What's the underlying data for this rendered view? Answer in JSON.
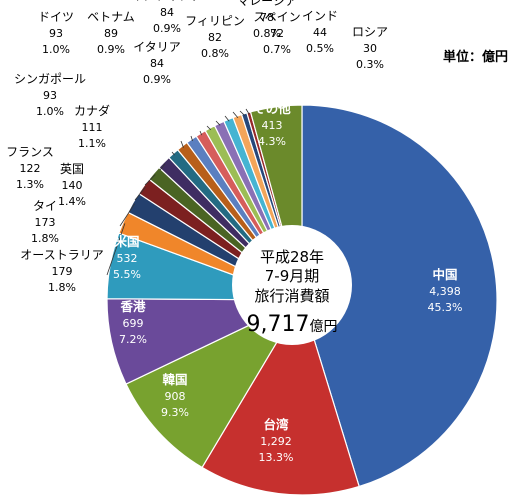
{
  "unit_label": "単位：億円",
  "center": {
    "line1": "平成28年",
    "line2": "7-9月期",
    "line3": "旅行消費額",
    "total_value": "9,717",
    "total_unit": "億円"
  },
  "chart_data": {
    "type": "pie",
    "title": "",
    "start_angle_deg": 0,
    "total": 9717,
    "slices": [
      {
        "label": "中国",
        "value": 4398,
        "value_text": "4,398",
        "pct": "45.3%",
        "color": "#3561a9"
      },
      {
        "label": "台湾",
        "value": 1292,
        "value_text": "1,292",
        "pct": "13.3%",
        "color": "#c6302e"
      },
      {
        "label": "韓国",
        "value": 908,
        "value_text": "908",
        "pct": "9.3%",
        "color": "#78a22f"
      },
      {
        "label": "香港",
        "value": 699,
        "value_text": "699",
        "pct": "7.2%",
        "color": "#6a4a9a"
      },
      {
        "label": "米国",
        "value": 532,
        "value_text": "532",
        "pct": "5.5%",
        "color": "#2f9bbd"
      },
      {
        "label": "オーストラリア",
        "value": 179,
        "value_text": "179",
        "pct": "1.8%",
        "color": "#f0862a"
      },
      {
        "label": "タイ",
        "value": 173,
        "value_text": "173",
        "pct": "1.8%",
        "color": "#23406e"
      },
      {
        "label": "英国",
        "value": 140,
        "value_text": "140",
        "pct": "1.4%",
        "color": "#7c2020"
      },
      {
        "label": "フランス",
        "value": 122,
        "value_text": "122",
        "pct": "1.3%",
        "color": "#4a6423"
      },
      {
        "label": "カナダ",
        "value": 111,
        "value_text": "111",
        "pct": "1.1%",
        "color": "#3f2d62"
      },
      {
        "label": "シンガポール",
        "value": 93,
        "value_text": "93",
        "pct": "1.0%",
        "color": "#236b83"
      },
      {
        "label": "ドイツ",
        "value": 93,
        "value_text": "93",
        "pct": "1.0%",
        "color": "#b85f1a"
      },
      {
        "label": "ベトナム",
        "value": 89,
        "value_text": "89",
        "pct": "0.9%",
        "color": "#5b7fc0"
      },
      {
        "label": "イタリア",
        "value": 84,
        "value_text": "84",
        "pct": "0.9%",
        "color": "#d65d5b"
      },
      {
        "label": "インドネシア",
        "value": 84,
        "value_text": "84",
        "pct": "0.9%",
        "color": "#9cbd55"
      },
      {
        "label": "フィリピン",
        "value": 82,
        "value_text": "82",
        "pct": "0.8%",
        "color": "#8a70b5"
      },
      {
        "label": "マレーシア",
        "value": 78,
        "value_text": "78",
        "pct": "0.8%",
        "color": "#45b4d2"
      },
      {
        "label": "スペイン",
        "value": 72,
        "value_text": "72",
        "pct": "0.7%",
        "color": "#f3a55a"
      },
      {
        "label": "インド",
        "value": 44,
        "value_text": "44",
        "pct": "0.5%",
        "color": "#26477a"
      },
      {
        "label": "ロシア",
        "value": 30,
        "value_text": "30",
        "pct": "0.3%",
        "color": "#962828"
      },
      {
        "label": "その他",
        "value": 413,
        "value_text": "413",
        "pct": "4.3%",
        "color": "#6b8a2b"
      }
    ]
  }
}
